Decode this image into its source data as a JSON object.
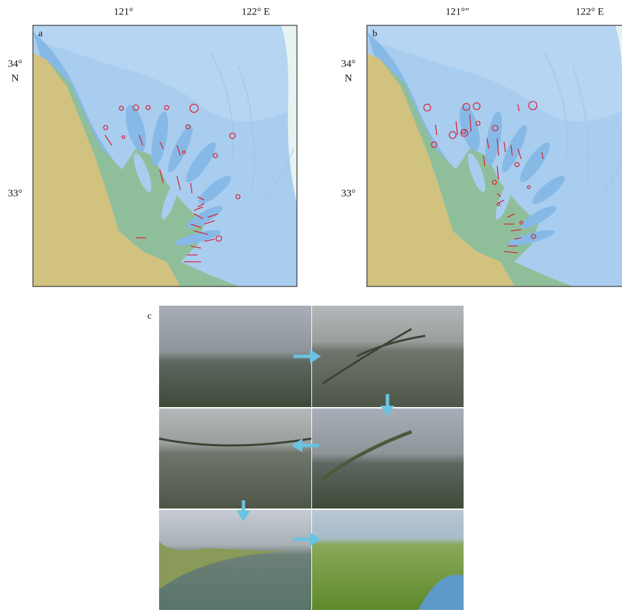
{
  "panels": [
    {
      "label": "a",
      "lon_labels": [
        "121°",
        "122° E"
      ],
      "lat_labels": [
        "34°",
        "N",
        "33°"
      ]
    },
    {
      "label": "b",
      "lon_labels": [
        "121°″",
        "122° E"
      ],
      "lat_labels": [
        "34°",
        "N",
        "33°"
      ]
    },
    {
      "label": "c"
    }
  ]
}
